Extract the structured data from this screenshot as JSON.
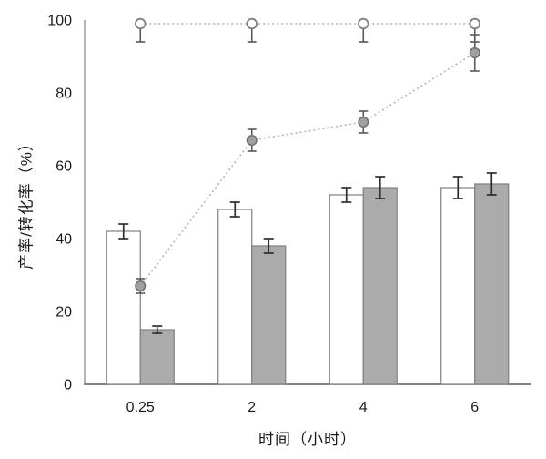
{
  "figure": {
    "background": "#ffffff"
  },
  "chart_data": {
    "type": "combo-bar-line",
    "title": "",
    "xlabel": "时间（小时）",
    "ylabel": "产率/转化率（%）",
    "categories": [
      "0.25",
      "2",
      "4",
      "6"
    ],
    "ylim": [
      0,
      100
    ],
    "yticks": [
      0,
      20,
      40,
      60,
      80,
      100
    ],
    "grid": false,
    "legend": "none",
    "axis_color": "#8c8c8c",
    "x_axis_color": "#595959",
    "tick_label_color": "#1a1a1a",
    "error_bar_color": "#2f2f2f",
    "marker_error_bar_color": "#595959",
    "series": [
      {
        "name": "white-bars",
        "type": "bar",
        "values": [
          42,
          48,
          52,
          54
        ],
        "errors": [
          2,
          2,
          2,
          3
        ],
        "fill": "#ffffff",
        "stroke": "#7f7f7f"
      },
      {
        "name": "gray-bars",
        "type": "bar",
        "values": [
          15,
          38,
          54,
          55
        ],
        "errors": [
          1,
          2,
          3,
          3
        ],
        "fill": "#ababab",
        "stroke": "#7f7f7f"
      },
      {
        "name": "filled-circle-line",
        "type": "line",
        "values": [
          27,
          67,
          72,
          91
        ],
        "errors": [
          2,
          3,
          3,
          5
        ],
        "error_direction": "both",
        "marker": "filled-circle",
        "marker_fill": "#a0a0a0",
        "marker_stroke": "#6b6b6b",
        "line_color": "#b3b3b3",
        "line_style": "dotted"
      },
      {
        "name": "open-circle-line",
        "type": "line",
        "values": [
          99,
          99,
          99,
          99
        ],
        "errors": [
          5,
          5,
          5,
          5
        ],
        "error_direction": "down",
        "marker": "open-circle",
        "marker_fill": "#ffffff",
        "marker_stroke": "#7f7f7f",
        "line_color": "#b3b3b3",
        "line_style": "dotted"
      }
    ]
  }
}
